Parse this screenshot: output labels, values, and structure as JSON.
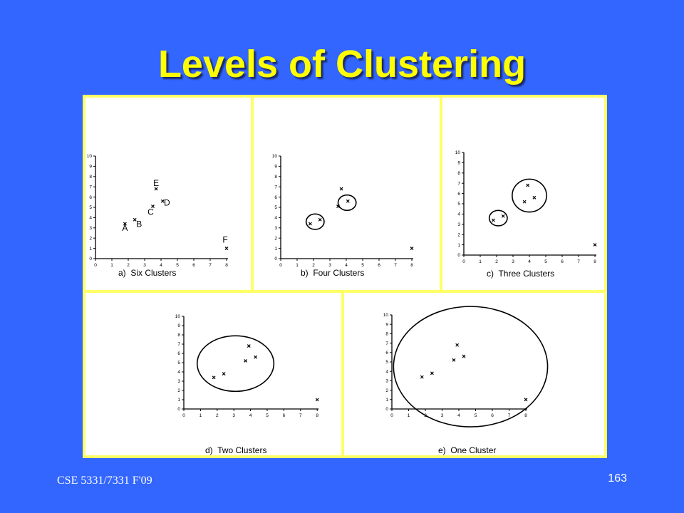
{
  "slide": {
    "title": "Levels of Clustering",
    "footer_left": "CSE 5331/7331 F'09",
    "page_number": "163",
    "background_color": "#3366ff",
    "title_color": "#ffff00",
    "frame_color": "#ffff66"
  },
  "chart_data": [
    {
      "type": "scatter",
      "caption": "a)  Six Clusters",
      "xlim": [
        0,
        8
      ],
      "ylim": [
        0,
        10
      ],
      "x_ticks": [
        0,
        1,
        2,
        3,
        4,
        5,
        6,
        7,
        8
      ],
      "y_ticks": [
        0,
        1,
        2,
        3,
        4,
        5,
        6,
        7,
        8,
        9,
        10
      ],
      "points": [
        {
          "label": "A",
          "x": 1.8,
          "y": 3.4
        },
        {
          "label": "B",
          "x": 2.4,
          "y": 3.8
        },
        {
          "label": "C",
          "x": 3.5,
          "y": 5.1
        },
        {
          "label": "D",
          "x": 4.1,
          "y": 5.6
        },
        {
          "label": "E",
          "x": 3.7,
          "y": 6.8
        },
        {
          "label": "F",
          "x": 8.0,
          "y": 1.0
        }
      ],
      "clusters": []
    },
    {
      "type": "scatter",
      "caption": "b)  Four Clusters",
      "xlim": [
        0,
        8
      ],
      "ylim": [
        0,
        10
      ],
      "x_ticks": [
        0,
        1,
        2,
        3,
        4,
        5,
        6,
        7,
        8
      ],
      "y_ticks": [
        0,
        1,
        2,
        3,
        4,
        5,
        6,
        7,
        8,
        9,
        10
      ],
      "points": [
        {
          "label": "",
          "x": 1.8,
          "y": 3.4
        },
        {
          "label": "",
          "x": 2.4,
          "y": 3.8
        },
        {
          "label": "",
          "x": 3.5,
          "y": 5.1
        },
        {
          "label": "",
          "x": 4.1,
          "y": 5.6
        },
        {
          "label": "",
          "x": 3.7,
          "y": 6.8
        },
        {
          "label": "",
          "x": 8.0,
          "y": 1.0
        }
      ],
      "clusters": [
        {
          "cx": 2.1,
          "cy": 3.6,
          "rx": 0.55,
          "ry": 0.75
        },
        {
          "cx": 4.05,
          "cy": 5.45,
          "rx": 0.55,
          "ry": 0.75
        }
      ]
    },
    {
      "type": "scatter",
      "caption": "c)  Three Clusters",
      "xlim": [
        0,
        8
      ],
      "ylim": [
        0,
        10
      ],
      "x_ticks": [
        0,
        1,
        2,
        3,
        4,
        5,
        6,
        7,
        8
      ],
      "y_ticks": [
        0,
        1,
        2,
        3,
        4,
        5,
        6,
        7,
        8,
        9,
        10
      ],
      "points": [
        {
          "label": "",
          "x": 1.8,
          "y": 3.4
        },
        {
          "label": "",
          "x": 2.4,
          "y": 3.8
        },
        {
          "label": "",
          "x": 3.7,
          "y": 5.2
        },
        {
          "label": "",
          "x": 4.3,
          "y": 5.6
        },
        {
          "label": "",
          "x": 3.9,
          "y": 6.8
        },
        {
          "label": "",
          "x": 8.0,
          "y": 1.0
        }
      ],
      "clusters": [
        {
          "cx": 2.1,
          "cy": 3.6,
          "rx": 0.55,
          "ry": 0.75
        },
        {
          "cx": 4.0,
          "cy": 5.8,
          "rx": 1.05,
          "ry": 1.6
        }
      ]
    },
    {
      "type": "scatter",
      "caption": "d)  Two Clusters",
      "xlim": [
        0,
        8
      ],
      "ylim": [
        0,
        10
      ],
      "x_ticks": [
        0,
        1,
        2,
        3,
        4,
        5,
        6,
        7,
        8
      ],
      "y_ticks": [
        0,
        1,
        2,
        3,
        4,
        5,
        6,
        7,
        8,
        9,
        10
      ],
      "points": [
        {
          "label": "",
          "x": 1.8,
          "y": 3.4
        },
        {
          "label": "",
          "x": 2.4,
          "y": 3.8
        },
        {
          "label": "",
          "x": 3.7,
          "y": 5.2
        },
        {
          "label": "",
          "x": 4.3,
          "y": 5.6
        },
        {
          "label": "",
          "x": 3.9,
          "y": 6.8
        },
        {
          "label": "",
          "x": 8.0,
          "y": 1.0
        }
      ],
      "clusters": [
        {
          "cx": 3.1,
          "cy": 4.9,
          "rx": 2.3,
          "ry": 3.0
        }
      ]
    },
    {
      "type": "scatter",
      "caption": "e)  One Cluster",
      "xlim": [
        0,
        8
      ],
      "ylim": [
        0,
        10
      ],
      "x_ticks": [
        0,
        1,
        2,
        3,
        4,
        5,
        6,
        7,
        8
      ],
      "y_ticks": [
        0,
        1,
        2,
        3,
        4,
        5,
        6,
        7,
        8,
        9,
        10
      ],
      "points": [
        {
          "label": "",
          "x": 1.8,
          "y": 3.4
        },
        {
          "label": "",
          "x": 2.4,
          "y": 3.8
        },
        {
          "label": "",
          "x": 3.7,
          "y": 5.2
        },
        {
          "label": "",
          "x": 4.3,
          "y": 5.6
        },
        {
          "label": "",
          "x": 3.9,
          "y": 6.8
        },
        {
          "label": "",
          "x": 8.0,
          "y": 1.0
        }
      ],
      "clusters": [
        {
          "cx": 4.7,
          "cy": 4.5,
          "rx": 4.6,
          "ry": 6.4
        }
      ]
    }
  ]
}
